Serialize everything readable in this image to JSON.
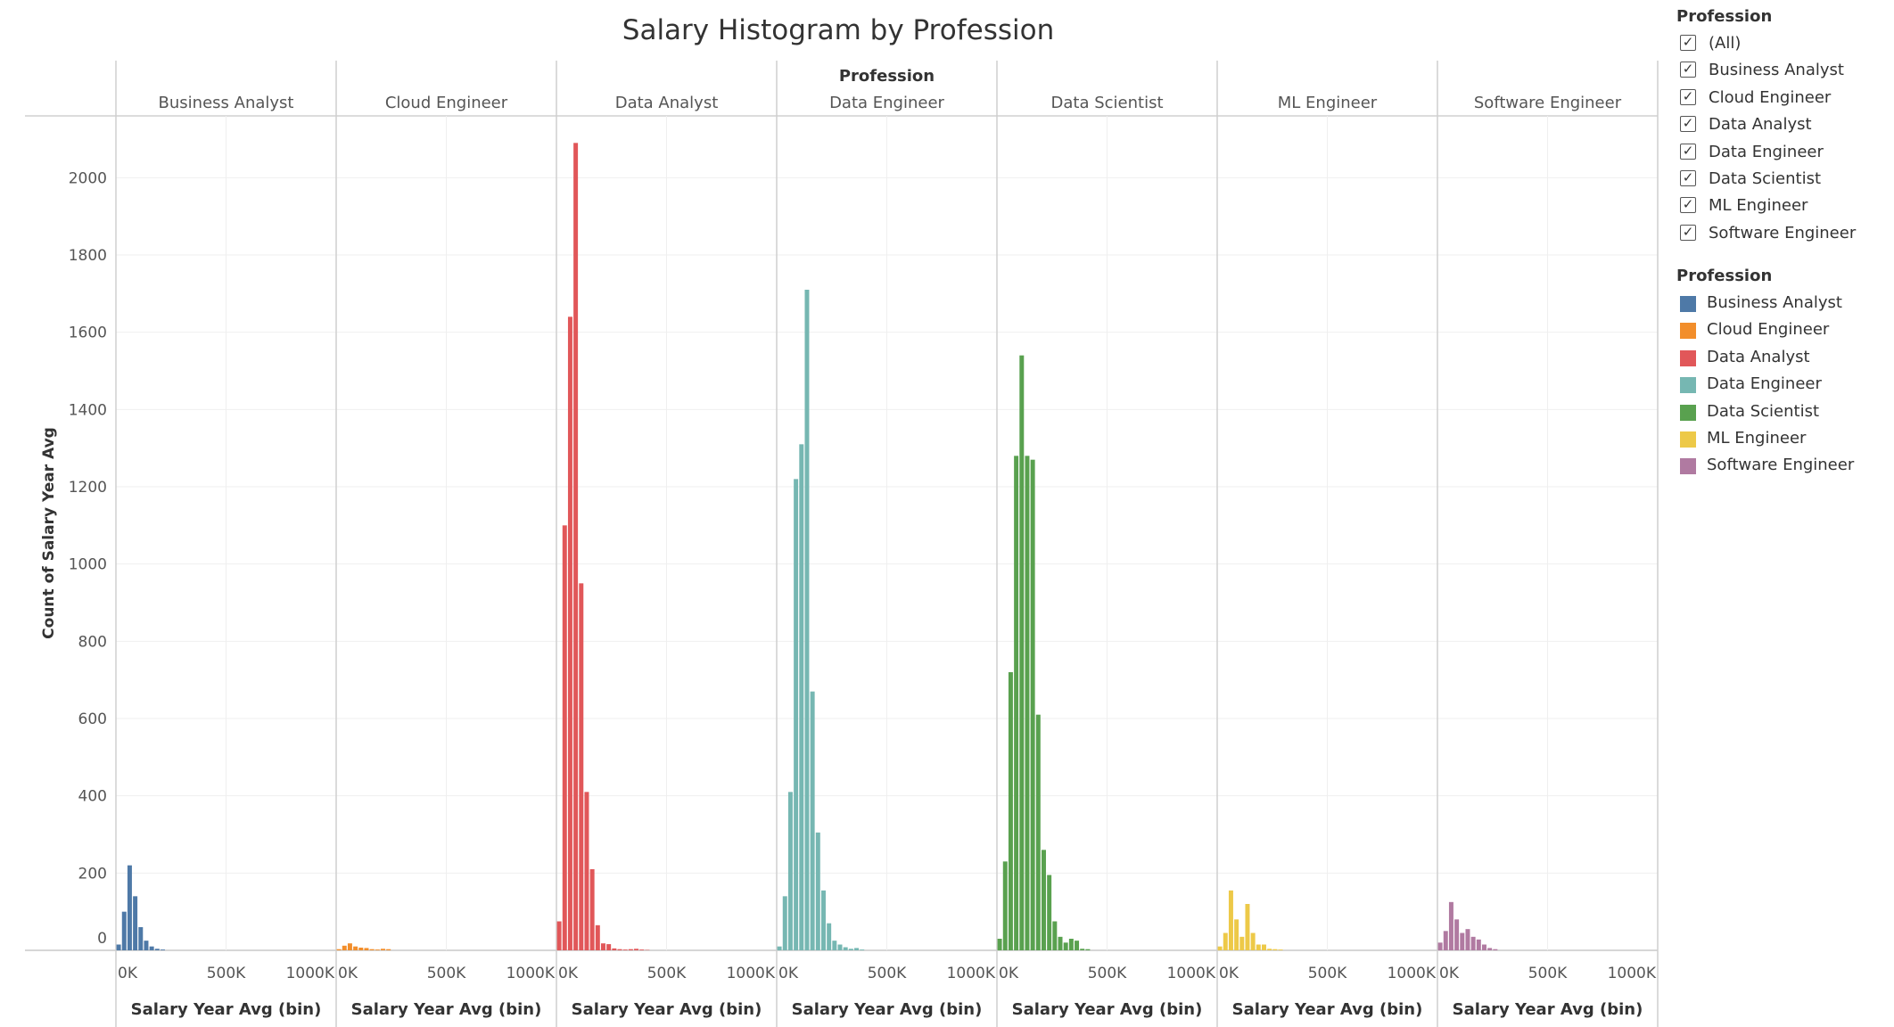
{
  "chart_data": {
    "type": "bar",
    "title": "Salary Histogram by Profession",
    "column_header": "Profession",
    "ylabel": "Count of Salary Year Avg",
    "xlabel": "Salary Year Avg (bin)",
    "ylim": [
      0,
      2160
    ],
    "y_ticks": [
      0,
      200,
      400,
      600,
      800,
      1000,
      1200,
      1400,
      1600,
      1800,
      2000
    ],
    "x_range": [
      0,
      1000000
    ],
    "x_ticks": [
      0,
      500000,
      1000000
    ],
    "x_tick_labels": [
      "0K",
      "500K",
      "1000K"
    ],
    "bin_width": 25000,
    "grid": true,
    "legend_position": "right",
    "series": [
      {
        "name": "Business Analyst",
        "color": "#4e79a7",
        "bin_starts": [
          0,
          25000,
          50000,
          75000,
          100000,
          125000,
          150000,
          175000,
          200000
        ],
        "values": [
          15,
          100,
          220,
          140,
          60,
          25,
          10,
          4,
          2
        ]
      },
      {
        "name": "Cloud Engineer",
        "color": "#f28e2b",
        "bin_starts": [
          0,
          25000,
          50000,
          75000,
          100000,
          125000,
          150000,
          175000,
          200000,
          225000
        ],
        "values": [
          3,
          12,
          18,
          10,
          7,
          6,
          3,
          2,
          4,
          3
        ]
      },
      {
        "name": "Data Analyst",
        "color": "#e15759",
        "bin_starts": [
          0,
          25000,
          50000,
          75000,
          100000,
          125000,
          150000,
          175000,
          200000,
          225000,
          250000,
          275000,
          300000,
          325000,
          350000,
          375000,
          400000
        ],
        "values": [
          75,
          1100,
          1640,
          2090,
          950,
          410,
          210,
          65,
          18,
          16,
          5,
          3,
          2,
          3,
          4,
          2,
          1
        ]
      },
      {
        "name": "Data Engineer",
        "color": "#76b7b2",
        "bin_starts": [
          0,
          25000,
          50000,
          75000,
          100000,
          125000,
          150000,
          175000,
          200000,
          225000,
          250000,
          275000,
          300000,
          325000,
          350000,
          375000
        ],
        "values": [
          10,
          140,
          410,
          1220,
          1310,
          1710,
          670,
          305,
          155,
          70,
          25,
          15,
          8,
          4,
          6,
          2
        ]
      },
      {
        "name": "Data Scientist",
        "color": "#59a14f",
        "bin_starts": [
          0,
          25000,
          50000,
          75000,
          100000,
          125000,
          150000,
          175000,
          200000,
          225000,
          250000,
          275000,
          300000,
          325000,
          350000,
          375000,
          400000
        ],
        "values": [
          30,
          230,
          720,
          1280,
          1540,
          1280,
          1270,
          610,
          260,
          195,
          75,
          35,
          20,
          30,
          25,
          4,
          3
        ]
      },
      {
        "name": "ML Engineer",
        "color": "#edc948",
        "bin_starts": [
          0,
          25000,
          50000,
          75000,
          100000,
          125000,
          150000,
          175000,
          200000,
          225000,
          250000,
          275000
        ],
        "values": [
          10,
          45,
          155,
          80,
          35,
          120,
          45,
          15,
          15,
          4,
          3,
          2
        ]
      },
      {
        "name": "Software Engineer",
        "color": "#b07aa1",
        "bin_starts": [
          0,
          25000,
          50000,
          75000,
          100000,
          125000,
          150000,
          175000,
          200000,
          225000,
          250000
        ],
        "values": [
          20,
          50,
          125,
          80,
          45,
          55,
          35,
          28,
          15,
          6,
          3
        ]
      }
    ]
  },
  "filter": {
    "title": "Profession",
    "items": [
      {
        "label": "(All)",
        "checked": true
      },
      {
        "label": "Business Analyst",
        "checked": true
      },
      {
        "label": "Cloud Engineer",
        "checked": true
      },
      {
        "label": "Data Analyst",
        "checked": true
      },
      {
        "label": "Data Engineer",
        "checked": true
      },
      {
        "label": "Data Scientist",
        "checked": true
      },
      {
        "label": "ML Engineer",
        "checked": true
      },
      {
        "label": "Software Engineer",
        "checked": true
      }
    ]
  },
  "legend": {
    "title": "Profession",
    "items": [
      {
        "label": "Business Analyst",
        "color": "#4e79a7"
      },
      {
        "label": "Cloud Engineer",
        "color": "#f28e2b"
      },
      {
        "label": "Data Analyst",
        "color": "#e15759"
      },
      {
        "label": "Data Engineer",
        "color": "#76b7b2"
      },
      {
        "label": "Data Scientist",
        "color": "#59a14f"
      },
      {
        "label": "ML Engineer",
        "color": "#edc948"
      },
      {
        "label": "Software Engineer",
        "color": "#b07aa1"
      }
    ]
  }
}
